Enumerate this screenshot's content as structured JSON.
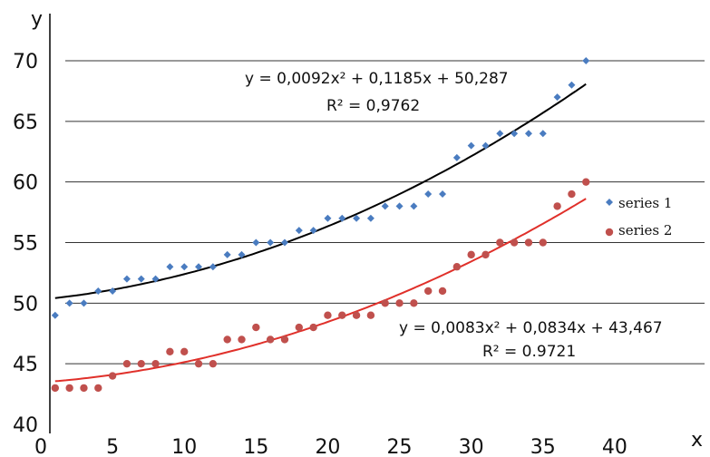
{
  "chart_data": {
    "type": "scatter",
    "xlabel": "x",
    "ylabel": "y",
    "xlim": [
      0,
      45
    ],
    "ylim": [
      40,
      70
    ],
    "x_ticks": [
      0,
      5,
      10,
      15,
      20,
      25,
      30,
      35,
      40
    ],
    "y_ticks": [
      40,
      45,
      50,
      55,
      60,
      65,
      70
    ],
    "grid": "horizontal",
    "legend": "right",
    "series": [
      {
        "name": "series 1",
        "color": "#4a7cc0",
        "marker": "diamond",
        "x": [
          1,
          2,
          3,
          4,
          5,
          6,
          7,
          8,
          9,
          10,
          11,
          12,
          13,
          14,
          15,
          16,
          17,
          18,
          19,
          20,
          21,
          22,
          23,
          24,
          25,
          26,
          27,
          28,
          29,
          30,
          31,
          32,
          33,
          34,
          35,
          36,
          37,
          38
        ],
        "y": [
          49,
          50,
          50,
          51,
          51,
          52,
          52,
          52,
          53,
          53,
          53,
          53,
          54,
          54,
          55,
          55,
          55,
          56,
          56,
          57,
          57,
          57,
          57,
          58,
          58,
          58,
          59,
          59,
          62,
          63,
          63,
          64,
          64,
          64,
          64,
          67,
          68,
          70
        ],
        "trendline": {
          "a": 0.0092,
          "b": 0.1185,
          "c": 50.287,
          "x_range": [
            1,
            38
          ],
          "color": "#000000"
        },
        "equation": "y = 0,0092x² + 0,1185x + 50,287",
        "r2": "R² = 0,9762"
      },
      {
        "name": "series 2",
        "color": "#c0504d",
        "marker": "circle",
        "x": [
          1,
          2,
          3,
          4,
          5,
          6,
          7,
          8,
          9,
          10,
          11,
          12,
          13,
          14,
          15,
          16,
          17,
          18,
          19,
          20,
          21,
          22,
          23,
          24,
          25,
          26,
          27,
          28,
          29,
          30,
          31,
          32,
          33,
          34,
          35,
          36,
          37,
          38
        ],
        "y": [
          43,
          43,
          43,
          43,
          44,
          45,
          45,
          45,
          46,
          46,
          45,
          45,
          47,
          47,
          48,
          47,
          47,
          48,
          48,
          49,
          49,
          49,
          49,
          50,
          50,
          50,
          51,
          51,
          53,
          54,
          54,
          55,
          55,
          55,
          55,
          58,
          59,
          60
        ],
        "trendline": {
          "a": 0.0083,
          "b": 0.0834,
          "c": 43.467,
          "x_range": [
            1,
            38
          ],
          "color": "#e0302a"
        },
        "equation": "y = 0,0083x² + 0,0834x + 43,467",
        "r2": "R² = 0.9721"
      }
    ]
  }
}
